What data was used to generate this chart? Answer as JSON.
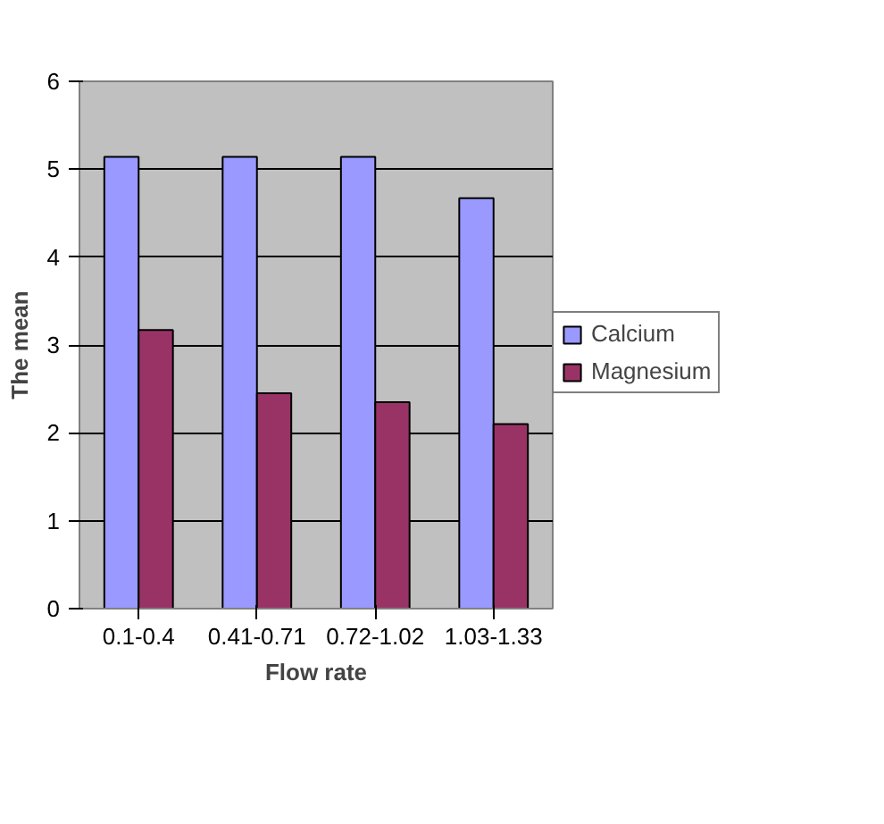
{
  "chart_data": {
    "type": "bar",
    "xlabel": "Flow rate",
    "ylabel": "The mean",
    "categories": [
      "0.1-0.4",
      "0.41-0.71",
      "0.72-1.02",
      "1.03-1.33"
    ],
    "series": [
      {
        "name": "Calcium",
        "color": "#9999ff",
        "values": [
          5.14,
          5.14,
          5.14,
          4.67
        ]
      },
      {
        "name": "Magnesium",
        "color": "#993366",
        "values": [
          3.17,
          2.45,
          2.35,
          2.1
        ]
      }
    ],
    "ylim": [
      0,
      6
    ],
    "yticks": [
      0,
      1,
      2,
      3,
      4,
      5,
      6
    ],
    "grid": "y",
    "legend": "right"
  }
}
